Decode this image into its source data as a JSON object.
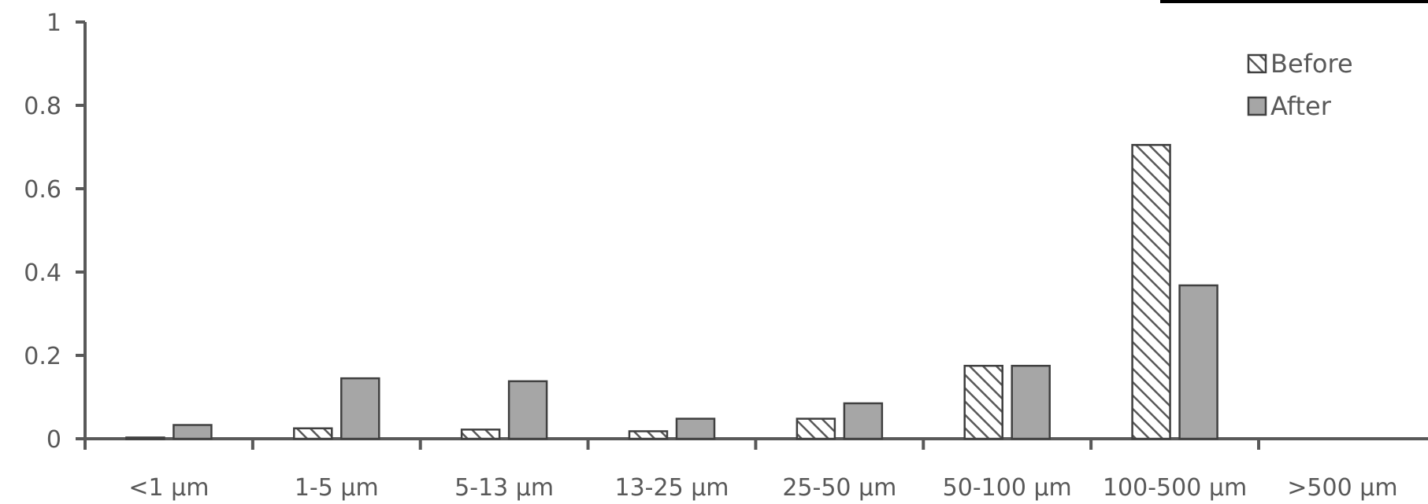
{
  "chart_data": {
    "type": "bar",
    "title": "",
    "xlabel": "",
    "ylabel": "",
    "categories": [
      "<1 µm",
      "1-5 µm",
      "5-13 µm",
      "13-25 µm",
      "25-50 µm",
      "50-100 µm",
      "100-500 µm",
      ">500 µm"
    ],
    "series": [
      {
        "name": "Before",
        "values": [
          0.003,
          0.025,
          0.022,
          0.018,
          0.048,
          0.175,
          0.705,
          0
        ],
        "pattern": "hatched"
      },
      {
        "name": "After",
        "values": [
          0.033,
          0.145,
          0.138,
          0.048,
          0.085,
          0.175,
          0.368,
          0
        ],
        "pattern": "solid",
        "color": "#a6a6a6"
      }
    ],
    "ylim": [
      0,
      1
    ],
    "yticks": [
      "0",
      "0.2",
      "0.4",
      "0.6",
      "0.8",
      "1"
    ],
    "grid": false,
    "legend_position": "top-right",
    "colors": {
      "axis": "#595959",
      "bar_outline": "#404040",
      "after_fill": "#a6a6a6",
      "hatch_line": "#595959",
      "text": "#595959"
    }
  }
}
